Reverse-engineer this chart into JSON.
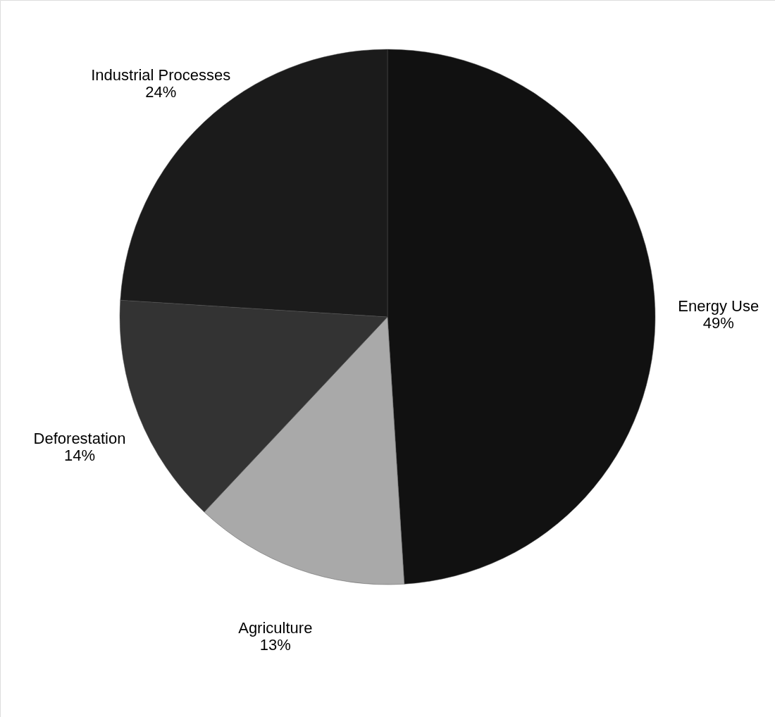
{
  "chart_data": {
    "type": "pie",
    "categories": [
      "Energy Use",
      "Agriculture",
      "Deforestation",
      "Industrial Processes"
    ],
    "values": [
      49,
      13,
      14,
      24
    ],
    "value_labels": [
      "49%",
      "13%",
      "14%",
      "24%"
    ],
    "colors": [
      "#111111",
      "#a9a9a9",
      "#333333",
      "#1b1b1b"
    ]
  }
}
